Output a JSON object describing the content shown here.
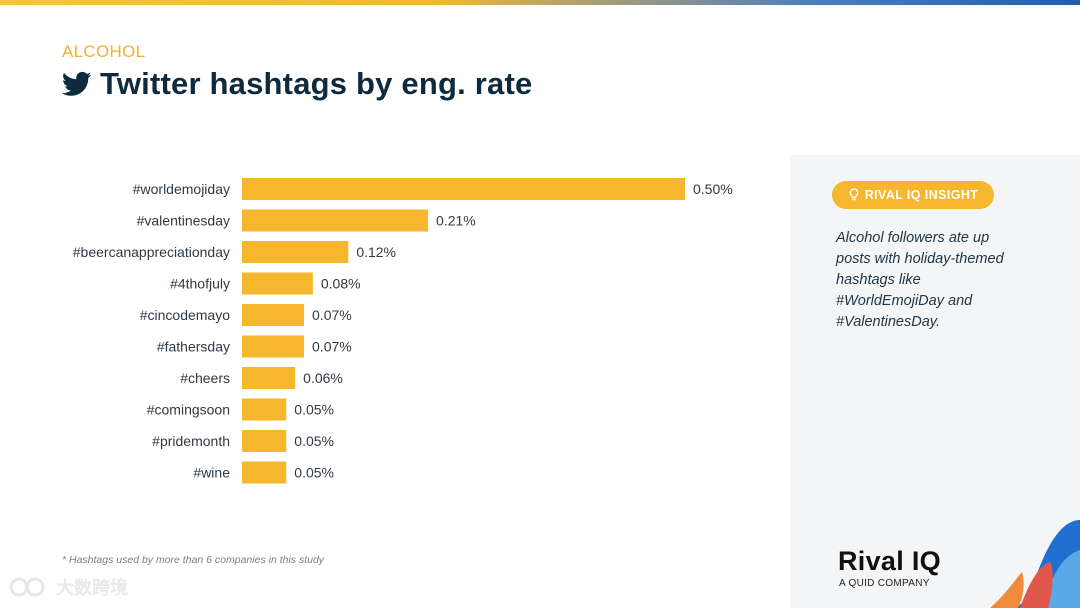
{
  "header": {
    "category": "ALCOHOL",
    "title": "Twitter hashtags by eng. rate"
  },
  "chart_data": {
    "type": "bar",
    "orientation": "horizontal",
    "categories": [
      "#worldemojiday",
      "#valentinesday",
      "#beercanappreciationday",
      "#4thofjuly",
      "#cincodemayo",
      "#fathersday",
      "#cheers",
      "#comingsoon",
      "#pridemonth",
      "#wine"
    ],
    "values": [
      0.5,
      0.21,
      0.12,
      0.08,
      0.07,
      0.07,
      0.06,
      0.05,
      0.05,
      0.05
    ],
    "value_labels": [
      "0.50%",
      "0.21%",
      "0.12%",
      "0.08%",
      "0.07%",
      "0.07%",
      "0.06%",
      "0.05%",
      "0.05%",
      "0.05%"
    ],
    "unit": "%",
    "xlim": [
      0,
      0.5
    ],
    "bar_color": "#f6b72e",
    "grid": false,
    "legend": "none"
  },
  "insight": {
    "badge": "RIVAL IQ INSIGHT",
    "text": "Alcohol followers ate up posts with holiday-themed hashtags like #WorldEmojiDay and #ValentinesDay."
  },
  "footnote": "* Hashtags used by more than 6 companies in this study",
  "brand": {
    "name": "Rival IQ",
    "tagline": "A QUID COMPANY"
  },
  "watermark": "大数跨境",
  "colors": {
    "accent": "#f6b72e",
    "title": "#0d2a3f",
    "panel": "#f4f5f7"
  },
  "icons": [
    "twitter-bird-icon",
    "lightbulb-icon"
  ]
}
